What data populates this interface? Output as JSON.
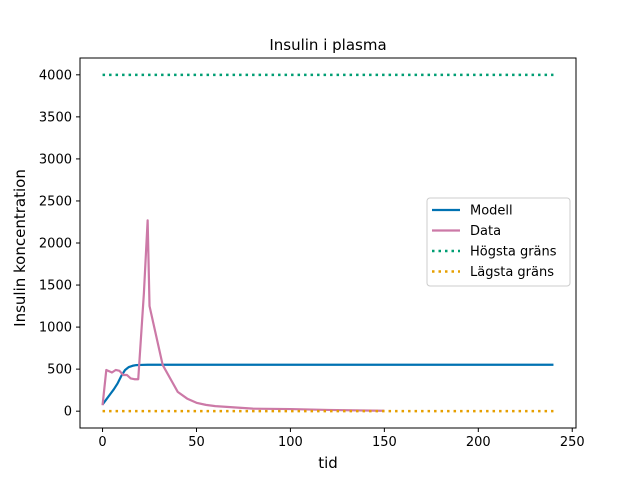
{
  "chart_data": {
    "type": "line",
    "title": "Insulin i plasma",
    "xlabel": "tid",
    "ylabel": "Insulin koncentration",
    "xlim": [
      -12,
      252
    ],
    "ylim": [
      -200,
      4200
    ],
    "xticks": [
      0,
      50,
      100,
      150,
      200,
      250
    ],
    "yticks": [
      0,
      500,
      1000,
      1500,
      2000,
      2500,
      3000,
      3500,
      4000
    ],
    "grid": false,
    "legend_position": "center-right",
    "series": [
      {
        "name": "Modell",
        "color": "#0072b2",
        "style": "solid",
        "x": [
          0,
          2,
          4,
          6,
          8,
          10,
          12,
          14,
          16,
          18,
          20,
          24,
          30,
          50,
          100,
          150,
          200,
          240
        ],
        "y": [
          80,
          140,
          200,
          260,
          330,
          420,
          490,
          525,
          540,
          548,
          550,
          552,
          552,
          552,
          552,
          552,
          552,
          552
        ]
      },
      {
        "name": "Data",
        "color": "#cc79a7",
        "style": "solid",
        "x": [
          0,
          2,
          5,
          7,
          9,
          11,
          13,
          15,
          17,
          19,
          22,
          24,
          25,
          27,
          30,
          32,
          40,
          45,
          50,
          55,
          60,
          70,
          80,
          100,
          120,
          150
        ],
        "y": [
          70,
          490,
          460,
          490,
          480,
          430,
          430,
          390,
          380,
          380,
          1400,
          2270,
          1250,
          1050,
          750,
          550,
          230,
          150,
          100,
          75,
          60,
          45,
          30,
          25,
          15,
          5
        ]
      },
      {
        "name": "Högsta gräns",
        "color": "#009e73",
        "style": "dotted",
        "x": [
          0,
          240
        ],
        "y": [
          4000,
          4000
        ]
      },
      {
        "name": "Lägsta gräns",
        "color": "#e69f00",
        "style": "dotted",
        "x": [
          0,
          240
        ],
        "y": [
          0,
          0
        ]
      }
    ]
  }
}
